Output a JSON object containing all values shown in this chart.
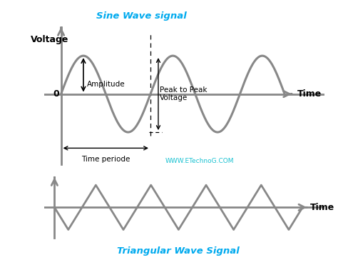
{
  "bg_color": "#ffffff",
  "sine_color": "#888888",
  "tri_color": "#888888",
  "axis_color": "#888888",
  "sine_title": "Sine Wave signal",
  "sine_title_color": "#00aaee",
  "tri_title": "Triangular Wave Signal",
  "tri_title_color": "#00aaee",
  "watermark": "WWW.ETechnoG.COM",
  "watermark_color": "#00bbcc",
  "voltage_label": "Voltage",
  "time_label_sine": "Time",
  "time_label_tri": "Time",
  "zero_label": "0",
  "amplitude_label": "Amplitude",
  "time_period_label": "Time periode",
  "peak_to_peak_label": "Peak to Peak\nVoltage",
  "sine_lw": 2.2,
  "tri_lw": 2.0,
  "axis_lw": 2.0
}
